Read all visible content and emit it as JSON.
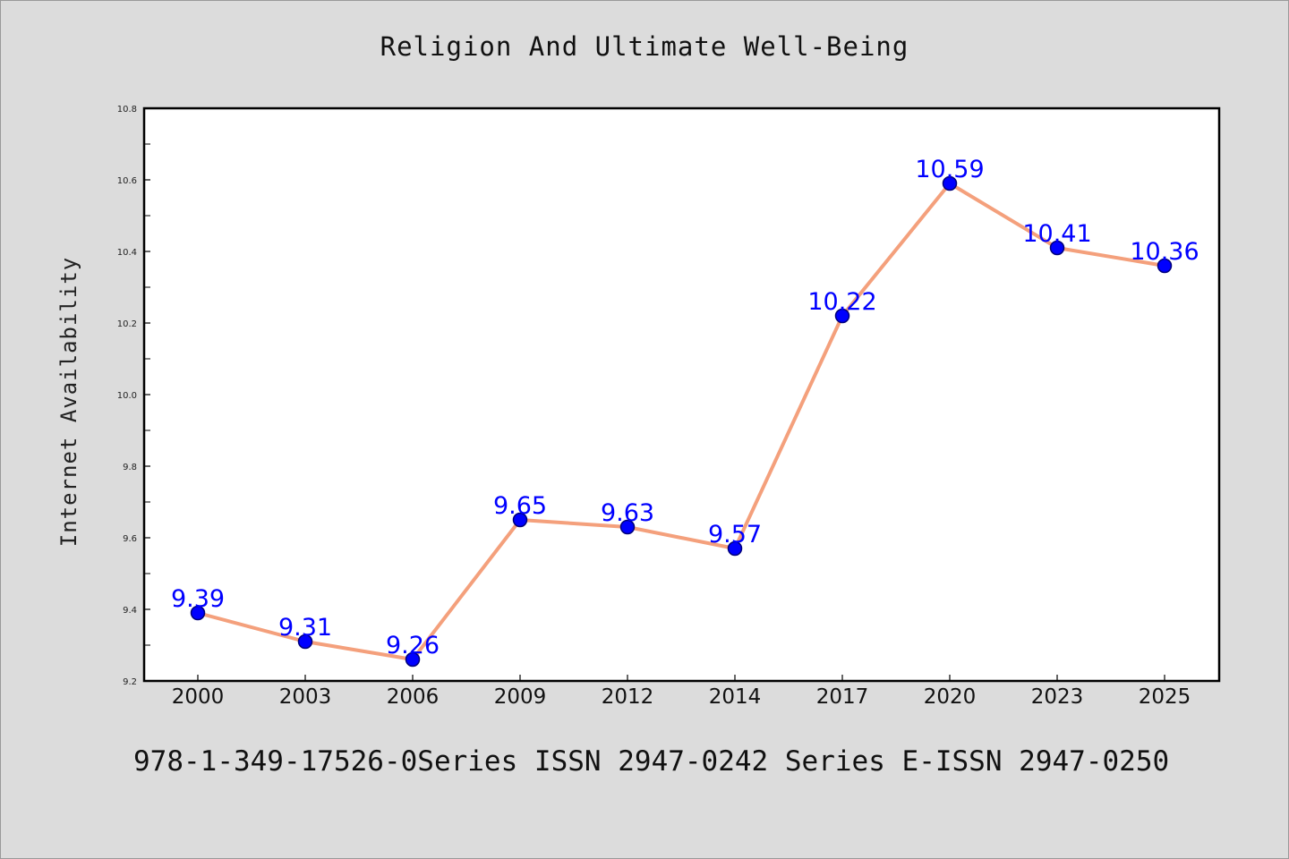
{
  "colors": {
    "background": "#dcdcdc",
    "plot_background": "#ffffff",
    "line": "#f4a07c",
    "marker": "#0000ff",
    "marker_edge": "#00007a",
    "data_label": "#0000ff"
  },
  "footer": {
    "text": "978-1-349-17526-0Series ISSN 2947-0242 Series E-ISSN 2947-0250"
  },
  "chart_data": {
    "type": "line",
    "title": "Religion And Ultimate Well-Being",
    "xlabel": "",
    "ylabel": "Internet Availability",
    "categories": [
      "2000",
      "2003",
      "2006",
      "2009",
      "2012",
      "2014",
      "2017",
      "2020",
      "2023",
      "2025"
    ],
    "series": [
      {
        "values": [
          9.39,
          9.31,
          9.26,
          9.65,
          9.63,
          9.57,
          10.22,
          10.59,
          10.41,
          10.36
        ],
        "labels": [
          "9.39",
          "9.31",
          "9.26",
          "9.65",
          "9.63",
          "9.57",
          "10.22",
          "10.59",
          "10.41",
          "10.36"
        ]
      }
    ],
    "ylim": [
      9.2,
      10.8
    ],
    "yticks": [
      "9.2",
      "9.4",
      "9.6",
      "9.8",
      "10.0",
      "10.2",
      "10.4",
      "10.6",
      "10.8"
    ],
    "grid": false,
    "legend": "none"
  }
}
